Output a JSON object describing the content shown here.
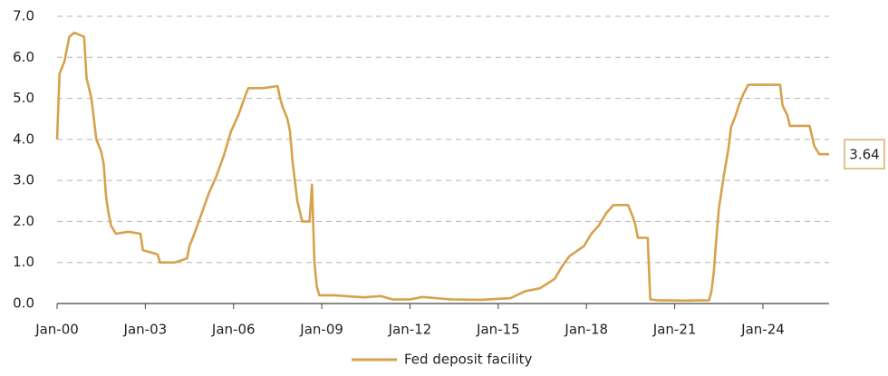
{
  "chart_data": {
    "type": "line",
    "x": [
      "2000-01",
      "2000-02",
      "2000-04",
      "2000-06",
      "2000-08",
      "2000-12",
      "2001-01",
      "2001-03",
      "2001-05",
      "2001-07",
      "2001-08",
      "2001-09",
      "2001-10",
      "2001-11",
      "2002-01",
      "2002-06",
      "2002-11",
      "2002-12",
      "2003-03",
      "2003-06",
      "2003-07",
      "2004-01",
      "2004-06",
      "2004-07",
      "2004-09",
      "2004-12",
      "2005-03",
      "2005-06",
      "2005-09",
      "2005-12",
      "2006-03",
      "2006-06",
      "2006-07",
      "2007-01",
      "2007-07",
      "2007-08",
      "2007-09",
      "2007-11",
      "2007-12",
      "2008-01",
      "2008-02",
      "2008-03",
      "2008-05",
      "2008-08",
      "2008-09",
      "2008-10",
      "2008-11",
      "2008-12",
      "2009-06",
      "2010-06",
      "2011-01",
      "2011-06",
      "2012-01",
      "2012-06",
      "2013-06",
      "2014-06",
      "2015-06",
      "2015-12",
      "2016-06",
      "2016-12",
      "2017-03",
      "2017-06",
      "2017-12",
      "2018-03",
      "2018-06",
      "2018-09",
      "2018-12",
      "2019-06",
      "2019-08",
      "2019-09",
      "2019-10",
      "2020-02",
      "2020-03",
      "2020-06",
      "2021-06",
      "2022-03",
      "2022-04",
      "2022-05",
      "2022-06",
      "2022-07",
      "2022-09",
      "2022-11",
      "2022-12",
      "2023-02",
      "2023-03",
      "2023-05",
      "2023-07",
      "2024-08",
      "2024-09",
      "2024-11",
      "2024-12",
      "2025-08",
      "2025-09",
      "2025-10",
      "2025-12",
      "2026-04"
    ],
    "series": [
      {
        "name": "Fed deposit facility",
        "color": "#d6a24c",
        "values": [
          4.0,
          5.6,
          5.9,
          6.5,
          6.6,
          6.5,
          5.5,
          5.0,
          4.0,
          3.7,
          3.4,
          2.6,
          2.2,
          1.9,
          1.7,
          1.75,
          1.7,
          1.3,
          1.25,
          1.2,
          1.0,
          1.0,
          1.1,
          1.4,
          1.7,
          2.2,
          2.7,
          3.1,
          3.6,
          4.2,
          4.6,
          5.1,
          5.25,
          5.25,
          5.3,
          5.0,
          4.8,
          4.5,
          4.2,
          3.5,
          3.0,
          2.5,
          2.0,
          2.0,
          2.9,
          1.0,
          0.4,
          0.2,
          0.2,
          0.15,
          0.18,
          0.1,
          0.1,
          0.16,
          0.1,
          0.09,
          0.13,
          0.3,
          0.37,
          0.6,
          0.9,
          1.15,
          1.4,
          1.7,
          1.9,
          2.2,
          2.4,
          2.4,
          2.1,
          1.9,
          1.6,
          1.6,
          0.1,
          0.08,
          0.07,
          0.08,
          0.3,
          0.8,
          1.6,
          2.3,
          3.1,
          3.8,
          4.3,
          4.6,
          4.8,
          5.1,
          5.33,
          5.33,
          4.83,
          4.58,
          4.33,
          4.33,
          4.08,
          3.83,
          3.64,
          3.64
        ]
      }
    ],
    "xlim": [
      "2000-01",
      "2026-04"
    ],
    "xticks": [
      {
        "value": "2000-01",
        "label": "Jan-00"
      },
      {
        "value": "2003-01",
        "label": "Jan-03"
      },
      {
        "value": "2006-01",
        "label": "Jan-06"
      },
      {
        "value": "2009-01",
        "label": "Jan-09"
      },
      {
        "value": "2012-01",
        "label": "Jan-12"
      },
      {
        "value": "2015-01",
        "label": "Jan-15"
      },
      {
        "value": "2018-01",
        "label": "Jan-18"
      },
      {
        "value": "2021-01",
        "label": "Jan-21"
      },
      {
        "value": "2024-01",
        "label": "Jan-24"
      }
    ],
    "ylim": [
      0,
      7
    ],
    "yticks": [
      {
        "value": 0,
        "label": "0.0"
      },
      {
        "value": 1,
        "label": "1.0"
      },
      {
        "value": 2,
        "label": "2.0"
      },
      {
        "value": 3,
        "label": "3.0"
      },
      {
        "value": 4,
        "label": "4.0"
      },
      {
        "value": 5,
        "label": "5.0"
      },
      {
        "value": 6,
        "label": "6.0"
      },
      {
        "value": 7,
        "label": "7.0"
      }
    ],
    "grid": true,
    "legend": "bottom"
  }
}
